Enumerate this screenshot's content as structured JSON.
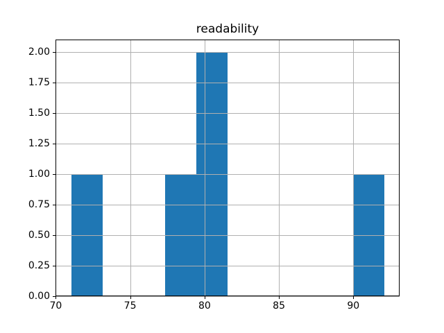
{
  "figure": {
    "background": "#ffffff"
  },
  "chart_data": {
    "type": "bar",
    "subtype": "histogram",
    "title": "readability",
    "xlabel": "",
    "ylabel": "",
    "bin_edges": [
      71.03,
      73.13,
      75.24,
      77.34,
      79.44,
      81.55,
      83.65,
      85.75,
      87.86,
      89.96,
      92.06
    ],
    "counts": [
      1,
      0,
      0,
      1,
      2,
      0,
      0,
      0,
      0,
      1
    ],
    "xlim": [
      69.98,
      93.11
    ],
    "ylim": [
      0,
      2.1
    ],
    "x_ticks": [
      {
        "value": 70,
        "label": "70"
      },
      {
        "value": 75,
        "label": "75"
      },
      {
        "value": 80,
        "label": "80"
      },
      {
        "value": 85,
        "label": "85"
      },
      {
        "value": 90,
        "label": "90"
      }
    ],
    "y_ticks": [
      {
        "value": 0.0,
        "label": "0.00"
      },
      {
        "value": 0.25,
        "label": "0.25"
      },
      {
        "value": 0.5,
        "label": "0.50"
      },
      {
        "value": 0.75,
        "label": "0.75"
      },
      {
        "value": 1.0,
        "label": "1.00"
      },
      {
        "value": 1.25,
        "label": "1.25"
      },
      {
        "value": 1.5,
        "label": "1.50"
      },
      {
        "value": 1.75,
        "label": "1.75"
      },
      {
        "value": 2.0,
        "label": "2.00"
      }
    ],
    "bar_color": "#1f77b4",
    "grid": true,
    "grid_on_top_of_bars": true,
    "grid_color": "#b0b0b0",
    "axis_color": "#000000",
    "text_color": "#000000",
    "legend": "none"
  }
}
